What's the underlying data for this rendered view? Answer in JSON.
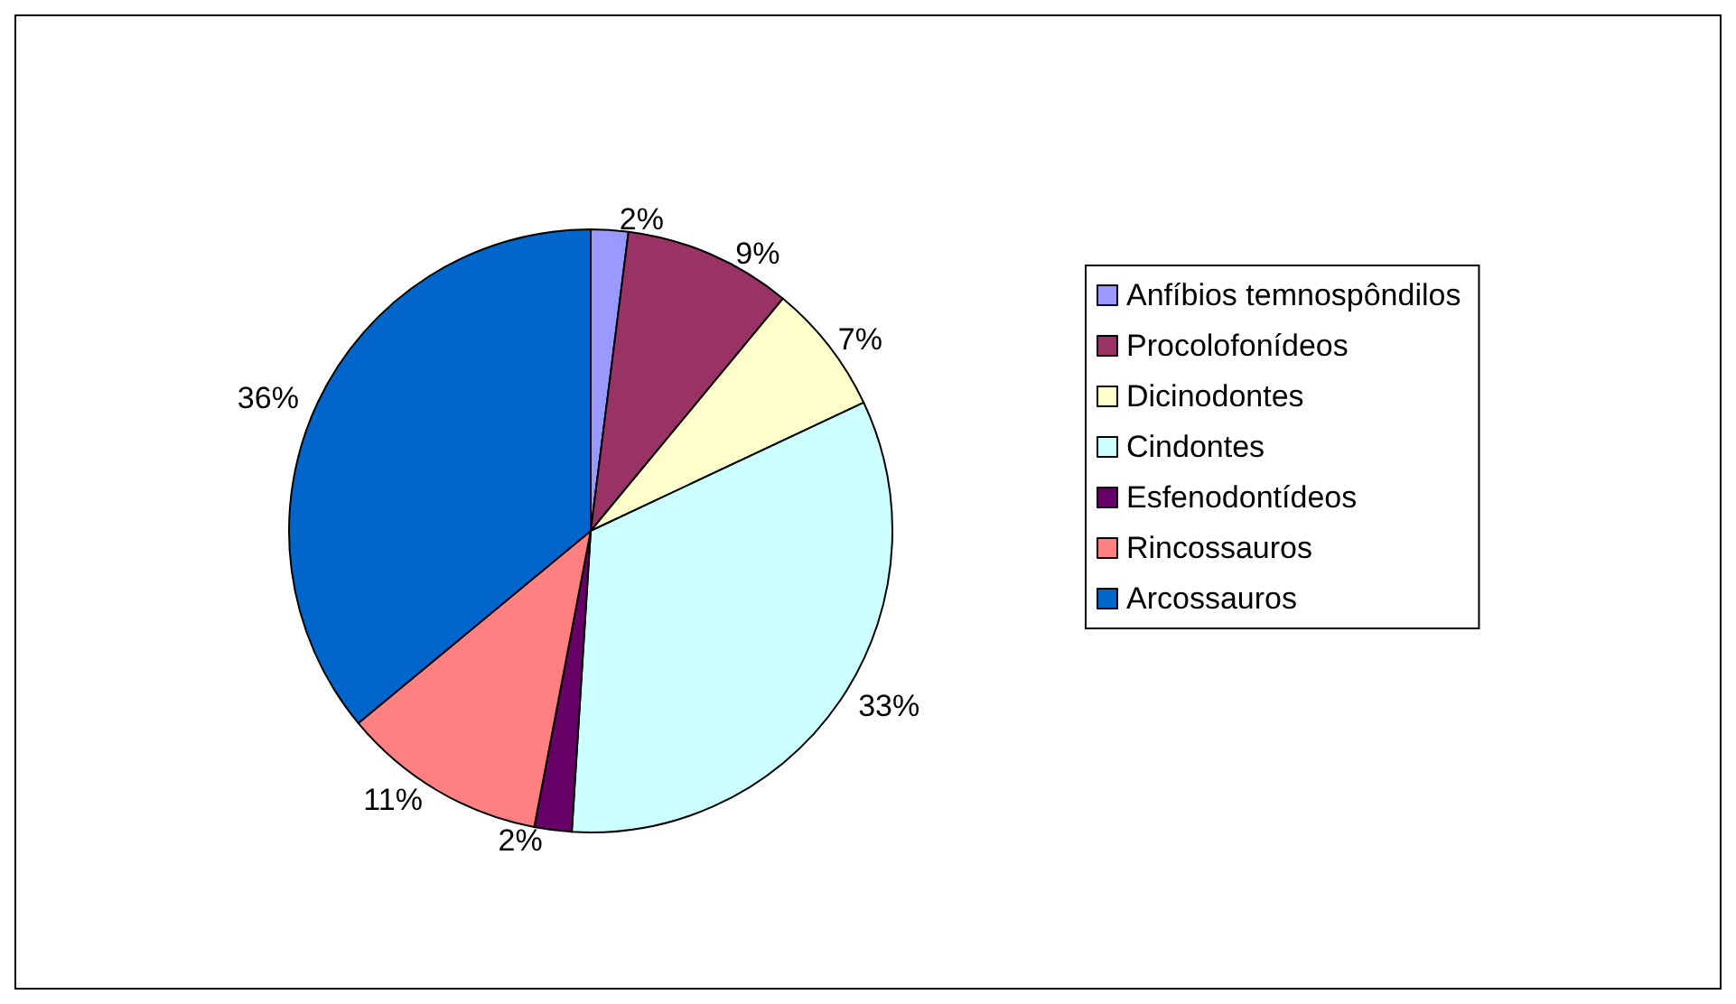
{
  "chart_data": {
    "type": "pie",
    "categories": [
      "Anfíbios temnospôndilos",
      "Procolofonídeos",
      "Dicinodontes",
      "Cindontes",
      "Esfenodontídeos",
      "Rincossauros",
      "Arcossauros"
    ],
    "values": [
      2,
      9,
      7,
      33,
      2,
      11,
      36
    ],
    "colors": [
      "#9999ff",
      "#993366",
      "#ffffcc",
      "#ccffff",
      "#660066",
      "#ff8080",
      "#0066cc"
    ],
    "value_labels": [
      "2%",
      "9%",
      "7%",
      "33%",
      "2%",
      "11%",
      "36%"
    ],
    "legend": "right"
  }
}
